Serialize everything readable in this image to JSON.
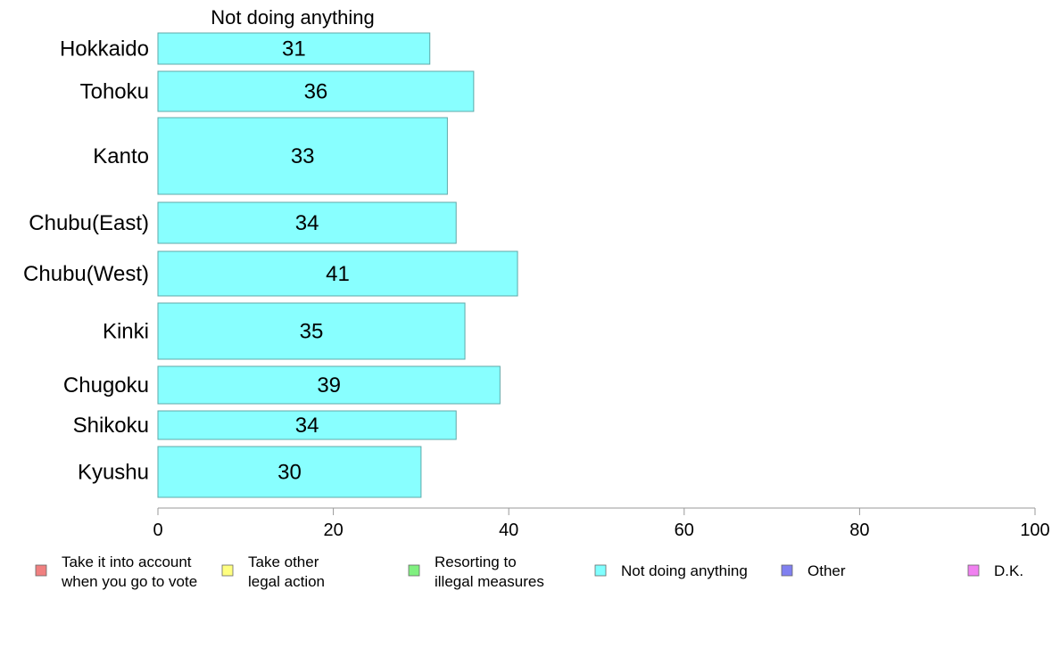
{
  "chart_data": {
    "type": "bar",
    "orientation": "horizontal",
    "title": "Not doing anything",
    "categories": [
      "Hokkaido",
      "Tohoku",
      "Kanto",
      "Chubu(East)",
      "Chubu(West)",
      "Kinki",
      "Chugoku",
      "Shikoku",
      "Kyushu"
    ],
    "series": [
      {
        "name": "Not doing anything",
        "color": "#88ffff",
        "values": [
          31,
          36,
          33,
          34,
          41,
          35,
          39,
          34,
          30
        ]
      }
    ],
    "xlim": [
      0,
      100
    ],
    "xticks": [
      0,
      20,
      40,
      60,
      80,
      100
    ],
    "grid": false,
    "legend": {
      "placement": "bottom",
      "entries": [
        {
          "label": [
            "Take it into account",
            "when you go to vote"
          ],
          "color": "#f08080"
        },
        {
          "label": [
            "Take other",
            "legal action"
          ],
          "color": "#ffff80"
        },
        {
          "label": [
            "Resorting to",
            "illegal measures"
          ],
          "color": "#80f080"
        },
        {
          "label": [
            "Not doing anything"
          ],
          "color": "#80ffff"
        },
        {
          "label": [
            "Other"
          ],
          "color": "#8080f0"
        },
        {
          "label": [
            "D.K."
          ],
          "color": "#f080f0"
        }
      ]
    }
  }
}
